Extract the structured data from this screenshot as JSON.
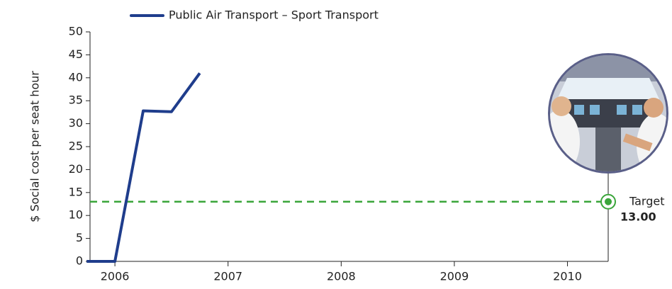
{
  "chart_data": {
    "type": "line",
    "y_label": "$ Social cost per seat hour",
    "x": [
      2005.75,
      2006,
      2006.25,
      2006.5,
      2006.75
    ],
    "series": [
      {
        "name": "Public Air Transport – Sport Transport",
        "color": "#1f3d8c",
        "values": [
          0,
          0,
          32.8,
          32.6,
          41
        ]
      }
    ],
    "xlim": [
      2005.78,
      2010.36
    ],
    "xticks": [
      2006,
      2007,
      2008,
      2009,
      2010
    ],
    "ylim": [
      0,
      50
    ],
    "yticks": [
      0,
      5,
      10,
      15,
      20,
      25,
      30,
      35,
      40,
      45,
      50
    ],
    "target": {
      "label": "Target",
      "value": 13,
      "value_label": "13.00",
      "color": "#3aa53a"
    }
  }
}
